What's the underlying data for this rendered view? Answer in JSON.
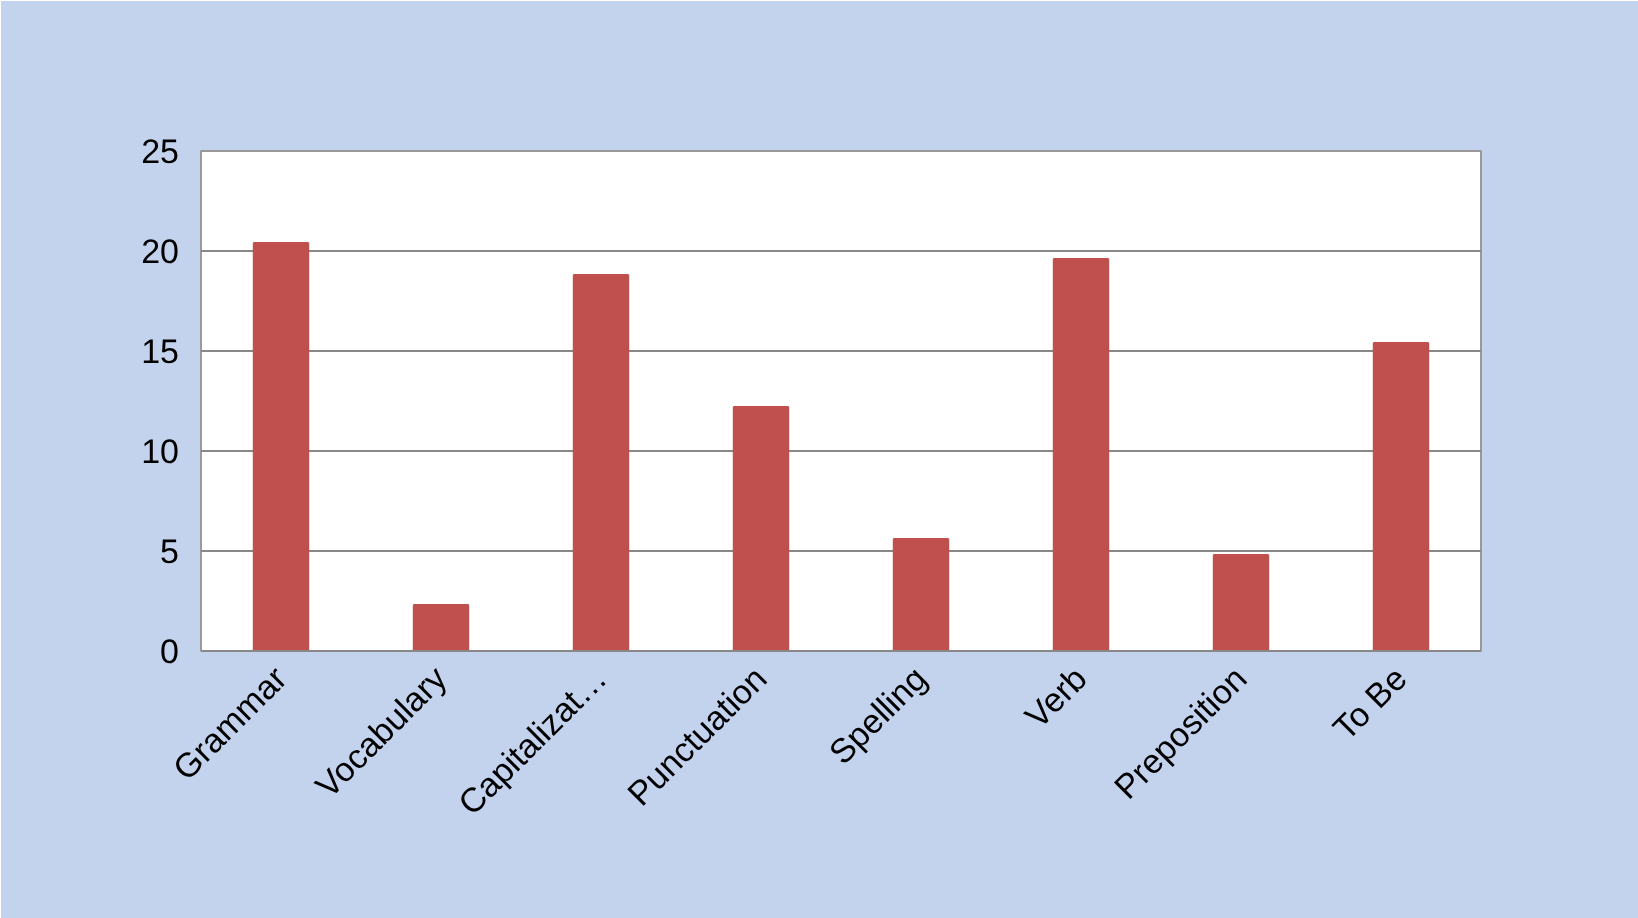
{
  "chart_data": {
    "type": "bar",
    "categories": [
      "Grammar",
      "Vocabulary",
      "Capitalizat…",
      "Punctuation",
      "Spelling",
      "Verb",
      "Preposition",
      "To Be"
    ],
    "values": [
      20.4,
      2.3,
      18.8,
      12.2,
      5.6,
      19.6,
      4.8,
      15.4
    ],
    "color": "#c0504d",
    "ylim": [
      0,
      25
    ],
    "yticks": [
      0,
      5,
      10,
      15,
      20,
      25
    ],
    "grid": "y"
  }
}
